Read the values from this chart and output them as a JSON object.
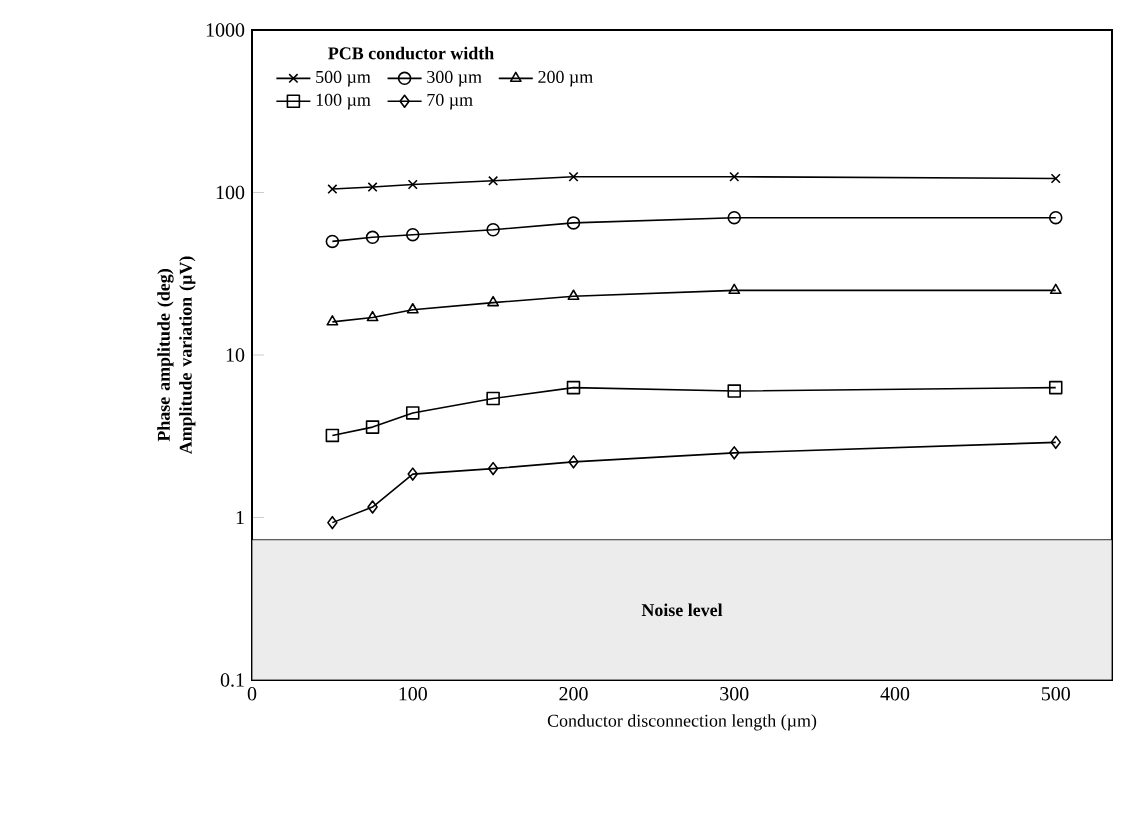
{
  "chart_data": {
    "type": "line",
    "xlabel": "Conductor disconnection length (µm)",
    "ylabel": "Phase amplitude (deg) Amplitude variation (µV)",
    "legend_title": "PCB conductor width",
    "legend": "top left",
    "log": "y",
    "grid": false,
    "line_style": "solid",
    "x": [
      50,
      75,
      100,
      150,
      200,
      300,
      500
    ],
    "xlim": [
      0,
      535
    ],
    "xticks": [
      0,
      100,
      200,
      300,
      400,
      500
    ],
    "ylim": [
      0.1,
      1000
    ],
    "yticks": [
      0.1,
      1,
      10,
      100,
      1000
    ],
    "series": [
      {
        "name": "500 µm",
        "color": "#000000",
        "marker": "cross",
        "values": [
          105,
          108,
          112,
          118,
          125,
          125,
          122
        ]
      },
      {
        "name": "300 µm",
        "color": "#000000",
        "marker": "circle",
        "values": [
          50,
          53,
          55,
          59,
          65,
          70,
          70
        ]
      },
      {
        "name": "200 µm",
        "color": "#000000",
        "marker": "triangle",
        "values": [
          16,
          17,
          19,
          21,
          23,
          25,
          25
        ]
      },
      {
        "name": "100 µm",
        "color": "#000000",
        "marker": "square",
        "values": [
          3.2,
          3.6,
          4.4,
          5.4,
          6.3,
          6.0,
          6.3
        ]
      },
      {
        "name": "70 µm",
        "color": "#000000",
        "marker": "diamond",
        "values": [
          0.93,
          1.16,
          1.85,
          2.0,
          2.2,
          2.5,
          2.9
        ]
      }
    ],
    "bands": [
      {
        "axis": "y",
        "from": 0.1,
        "to": 0.73,
        "label": "Noise level",
        "color": "#ececec"
      }
    ]
  }
}
